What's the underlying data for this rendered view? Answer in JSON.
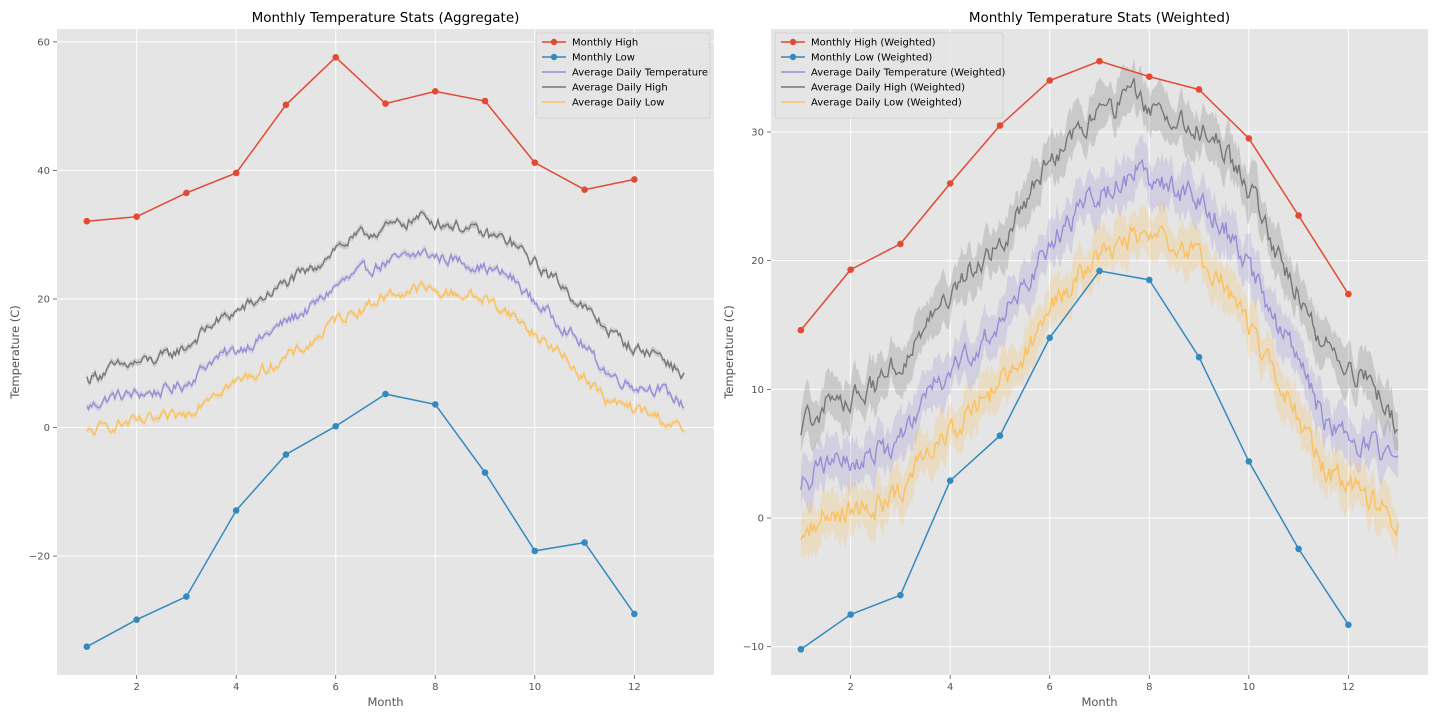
{
  "chart_data": [
    {
      "type": "line",
      "title": "Monthly Temperature Stats (Aggregate)",
      "xlabel": "Month",
      "ylabel": "Temperature (C)",
      "xlim": [
        0.4,
        13.6
      ],
      "ylim": [
        -38.5,
        62
      ],
      "xticks": [
        2,
        4,
        6,
        8,
        10,
        12
      ],
      "yticks": [
        -20,
        0,
        20,
        40,
        60
      ],
      "grid": true,
      "legend_position": "top-right",
      "series": [
        {
          "name": "Monthly High",
          "color": "#E24A33",
          "marker": "circle",
          "x": [
            1,
            2,
            3,
            4,
            5,
            6,
            7,
            8,
            9,
            10,
            11,
            12
          ],
          "y": [
            32.1,
            32.8,
            36.5,
            39.6,
            50.2,
            57.6,
            50.4,
            52.3,
            50.8,
            41.2,
            37.0,
            38.6
          ]
        },
        {
          "name": "Monthly Low",
          "color": "#348ABD",
          "marker": "circle",
          "x": [
            1,
            2,
            3,
            4,
            5,
            6,
            7,
            8,
            9,
            10,
            11,
            12
          ],
          "y": [
            -34.1,
            -29.9,
            -26.3,
            -12.9,
            -4.2,
            0.2,
            5.2,
            3.6,
            -7.0,
            -19.2,
            -17.9,
            -29.0
          ]
        },
        {
          "name": "Average Daily Temperature",
          "color": "#988ED5",
          "x": [
            1,
            1.5,
            2,
            2.5,
            3,
            3.5,
            4,
            4.5,
            5,
            5.5,
            6,
            6.5,
            7,
            7.5,
            7.75,
            8,
            8.5,
            9,
            9.5,
            10,
            10.5,
            11,
            11.5,
            12,
            12.5,
            13
          ],
          "y": [
            3.0,
            4.8,
            5.2,
            5.6,
            6.8,
            10.5,
            12.0,
            13.8,
            16.5,
            18.6,
            22.0,
            24.2,
            25.6,
            26.6,
            27.2,
            26.6,
            25.9,
            24.8,
            23.5,
            19.5,
            16.3,
            12.5,
            8.2,
            6.5,
            6.1,
            3.5
          ]
        },
        {
          "name": "Average Daily High",
          "color": "#777777",
          "x": [
            1,
            1.5,
            2,
            2.5,
            3,
            3.5,
            4,
            4.5,
            5,
            5.5,
            6,
            6.5,
            7,
            7.5,
            7.75,
            8,
            8.5,
            9,
            9.5,
            10,
            10.5,
            11,
            11.5,
            12,
            12.5,
            13
          ],
          "y": [
            7.5,
            9.2,
            10.0,
            10.8,
            12.5,
            16.0,
            18.0,
            20.0,
            22.5,
            24.5,
            28.0,
            29.8,
            31.0,
            32.2,
            32.8,
            32.0,
            31.3,
            30.0,
            29.0,
            25.5,
            22.5,
            18.5,
            15.0,
            12.2,
            11.5,
            7.8
          ]
        },
        {
          "name": "Average Daily Low",
          "color": "#FBC15E",
          "x": [
            1,
            1.5,
            2,
            2.5,
            3,
            3.5,
            4,
            4.5,
            5,
            5.5,
            6,
            6.5,
            7,
            7.5,
            7.75,
            8,
            8.5,
            9,
            9.5,
            10,
            10.5,
            11,
            11.5,
            12,
            12.5,
            13
          ],
          "y": [
            -1.0,
            0.4,
            0.8,
            1.2,
            2.0,
            5.5,
            7.0,
            8.8,
            10.8,
            13.0,
            16.8,
            18.5,
            20.5,
            21.3,
            21.8,
            21.0,
            20.8,
            20.0,
            17.8,
            14.5,
            11.5,
            7.8,
            3.8,
            3.0,
            1.5,
            -0.5
          ]
        }
      ]
    },
    {
      "type": "line",
      "title": "Monthly Temperature Stats (Weighted)",
      "xlabel": "Month",
      "ylabel": "Temperature (C)",
      "xlim": [
        0.4,
        13.6
      ],
      "ylim": [
        -12.2,
        38.0
      ],
      "xticks": [
        2,
        4,
        6,
        8,
        10,
        12
      ],
      "yticks": [
        -10,
        0,
        10,
        20,
        30
      ],
      "grid": true,
      "legend_position": "top-left",
      "series": [
        {
          "name": "Monthly High (Weighted)",
          "color": "#E24A33",
          "marker": "circle",
          "x": [
            1,
            2,
            3,
            4,
            5,
            6,
            7,
            8,
            9,
            10,
            11,
            12
          ],
          "y": [
            14.6,
            19.3,
            21.3,
            26.0,
            30.5,
            34.0,
            35.5,
            34.3,
            33.3,
            29.5,
            23.5,
            17.4
          ]
        },
        {
          "name": "Monthly Low (Weighted)",
          "color": "#348ABD",
          "marker": "circle",
          "x": [
            1,
            2,
            3,
            4,
            5,
            6,
            7,
            8,
            9,
            10,
            11,
            12
          ],
          "y": [
            -10.2,
            -7.5,
            -6.0,
            2.9,
            6.4,
            14.0,
            19.2,
            18.5,
            12.5,
            4.4,
            -2.4,
            -8.3
          ]
        },
        {
          "name": "Average Daily Temperature (Weighted)",
          "color": "#988ED5",
          "x": [
            1,
            1.5,
            2,
            2.5,
            3,
            3.5,
            4,
            4.5,
            5,
            5.5,
            6,
            6.5,
            7,
            7.5,
            7.75,
            8,
            8.5,
            9,
            9.5,
            10,
            10.5,
            11,
            11.5,
            12,
            12.5,
            13
          ],
          "y": [
            2.8,
            4.2,
            4.6,
            5.0,
            6.0,
            9.5,
            11.2,
            13.2,
            15.2,
            17.8,
            21.5,
            23.6,
            25.3,
            26.2,
            27.0,
            26.3,
            25.6,
            24.8,
            22.8,
            19.4,
            15.8,
            12.2,
            7.8,
            6.1,
            5.6,
            3.5
          ]
        },
        {
          "name": "Average Daily High (Weighted)",
          "color": "#777777",
          "x": [
            1,
            1.5,
            2,
            2.5,
            3,
            3.5,
            4,
            4.5,
            5,
            5.5,
            6,
            6.5,
            7,
            7.5,
            7.75,
            8,
            8.5,
            9,
            9.5,
            10,
            10.5,
            11,
            11.5,
            12,
            12.5,
            13
          ],
          "y": [
            7.0,
            8.8,
            9.5,
            10.2,
            12.0,
            15.0,
            17.0,
            19.5,
            21.5,
            24.5,
            28.0,
            30.0,
            31.2,
            32.2,
            33.0,
            31.8,
            31.3,
            30.2,
            28.8,
            25.5,
            21.5,
            17.5,
            13.5,
            11.5,
            10.5,
            7.2
          ]
        },
        {
          "name": "Average Daily Low (Weighted)",
          "color": "#FBC15E",
          "x": [
            1,
            1.5,
            2,
            2.5,
            3,
            3.5,
            4,
            4.5,
            5,
            5.5,
            6,
            6.5,
            7,
            7.5,
            7.75,
            8,
            8.5,
            9,
            9.5,
            10,
            10.5,
            11,
            11.5,
            12,
            12.5,
            13
          ],
          "y": [
            -1.2,
            0.3,
            0.6,
            1.0,
            1.8,
            5.0,
            6.5,
            8.5,
            10.5,
            12.8,
            16.5,
            18.4,
            20.5,
            21.4,
            22.2,
            21.4,
            21.2,
            20.2,
            18.2,
            14.8,
            11.2,
            7.8,
            3.8,
            2.8,
            1.4,
            -0.6
          ]
        }
      ]
    }
  ]
}
